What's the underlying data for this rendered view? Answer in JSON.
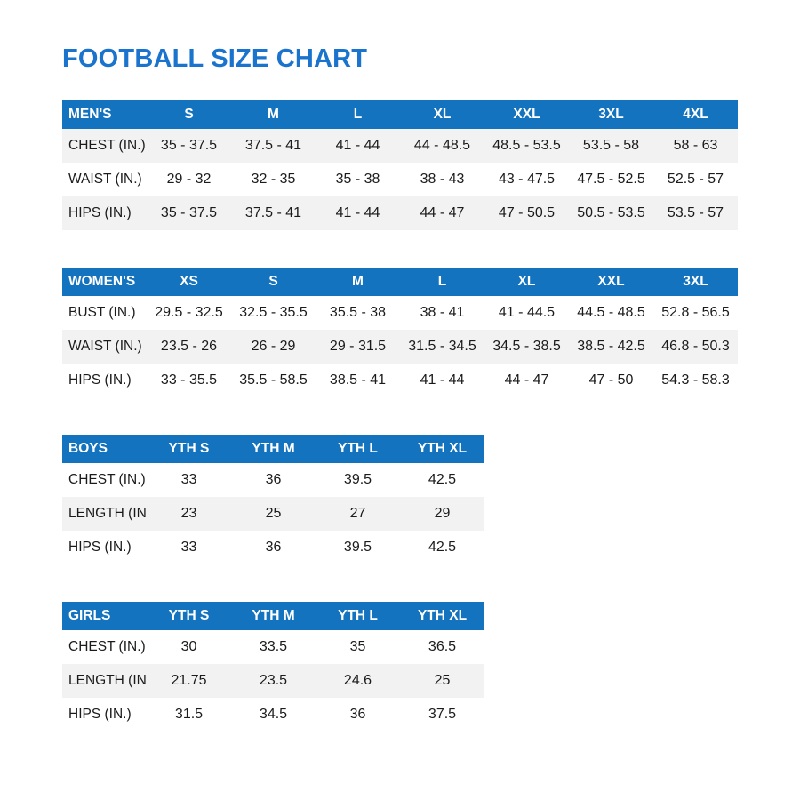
{
  "page_title": "FOOTBALL SIZE CHART",
  "colors": {
    "accent": "#1A74CE",
    "header_bg": "#1473BE",
    "stripe": "#F2F2F2",
    "text": "#1B1B1B"
  },
  "tables": [
    {
      "id": "mens",
      "wide": true,
      "header": [
        "MEN'S",
        "S",
        "M",
        "L",
        "XL",
        "XXL",
        "3XL",
        "4XL"
      ],
      "rows": [
        {
          "label": "CHEST (IN.)",
          "striped": true,
          "values": [
            "35 - 37.5",
            "37.5 - 41",
            "41 - 44",
            "44 - 48.5",
            "48.5 - 53.5",
            "53.5 - 58",
            "58 - 63"
          ]
        },
        {
          "label": "WAIST (IN.)",
          "striped": false,
          "values": [
            "29 - 32",
            "32 - 35",
            "35 - 38",
            "38 - 43",
            "43 - 47.5",
            "47.5 - 52.5",
            "52.5 - 57"
          ]
        },
        {
          "label": "HIPS (IN.)",
          "striped": true,
          "values": [
            "35 - 37.5",
            "37.5 - 41",
            "41 - 44",
            "44 - 47",
            "47 - 50.5",
            "50.5 - 53.5",
            "53.5 - 57"
          ]
        }
      ]
    },
    {
      "id": "womens",
      "wide": true,
      "header": [
        "WOMEN'S",
        "XS",
        "S",
        "M",
        "L",
        "XL",
        "XXL",
        "3XL"
      ],
      "rows": [
        {
          "label": "BUST (IN.)",
          "striped": false,
          "values": [
            "29.5 - 32.5",
            "32.5 - 35.5",
            "35.5 - 38",
            "38 - 41",
            "41 - 44.5",
            "44.5 - 48.5",
            "52.8 - 56.5"
          ]
        },
        {
          "label": "WAIST (IN.)",
          "striped": true,
          "values": [
            "23.5 - 26",
            "26 - 29",
            "29 - 31.5",
            "31.5 - 34.5",
            "34.5 - 38.5",
            "38.5 - 42.5",
            "46.8 - 50.3"
          ]
        },
        {
          "label": "HIPS (IN.)",
          "striped": false,
          "values": [
            "33 - 35.5",
            "35.5 - 58.5",
            "38.5 - 41",
            "41 - 44",
            "44 - 47",
            "47 - 50",
            "54.3 - 58.3"
          ]
        }
      ]
    },
    {
      "id": "boys",
      "wide": false,
      "header": [
        "BOYS",
        "YTH S",
        "YTH M",
        "YTH L",
        "YTH XL"
      ],
      "rows": [
        {
          "label": "CHEST (IN.)",
          "striped": false,
          "values": [
            "33",
            "36",
            "39.5",
            "42.5"
          ]
        },
        {
          "label": "LENGTH (IN.)",
          "striped": true,
          "values": [
            "23",
            "25",
            "27",
            "29"
          ]
        },
        {
          "label": "HIPS (IN.)",
          "striped": false,
          "values": [
            "33",
            "36",
            "39.5",
            "42.5"
          ]
        }
      ]
    },
    {
      "id": "girls",
      "wide": false,
      "header": [
        "GIRLS",
        "YTH S",
        "YTH M",
        "YTH L",
        "YTH XL"
      ],
      "rows": [
        {
          "label": "CHEST (IN.)",
          "striped": false,
          "values": [
            "30",
            "33.5",
            "35",
            "36.5"
          ]
        },
        {
          "label": "LENGTH (IN.)",
          "striped": true,
          "values": [
            "21.75",
            "23.5",
            "24.6",
            "25"
          ]
        },
        {
          "label": "HIPS (IN.)",
          "striped": false,
          "values": [
            "31.5",
            "34.5",
            "36",
            "37.5"
          ]
        }
      ]
    }
  ]
}
